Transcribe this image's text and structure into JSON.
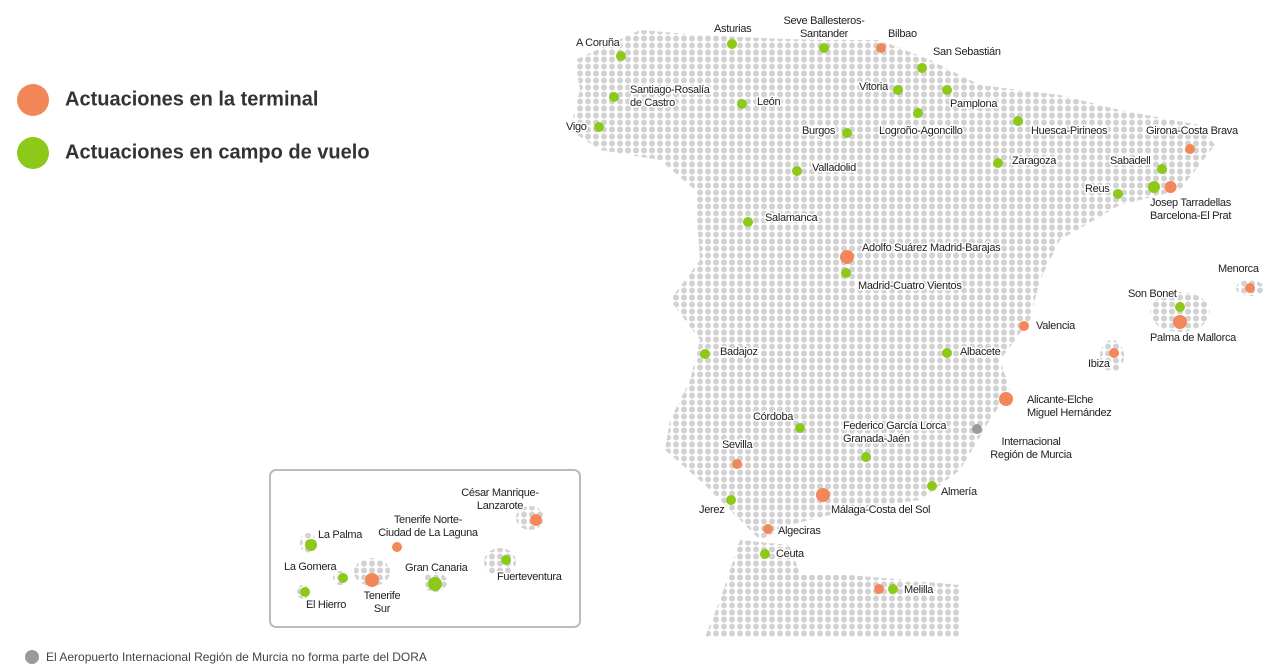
{
  "legend": [
    {
      "label": "Actuaciones en la terminal",
      "color": "#f4875a"
    },
    {
      "label": "Actuaciones en campo de vuelo",
      "color": "#8cc919"
    }
  ],
  "airports": [
    {
      "lines": [
        "A Coruña"
      ],
      "colors": [
        "#8cc919"
      ]
    },
    {
      "lines": [
        "Asturias"
      ],
      "colors": [
        "#8cc919"
      ]
    },
    {
      "lines": [
        "Seve Ballesteros-",
        "Santander"
      ],
      "colors": [
        "#8cc919"
      ]
    },
    {
      "lines": [
        "Bilbao"
      ],
      "colors": [
        "#f4875a"
      ]
    },
    {
      "lines": [
        "San Sebastián"
      ],
      "colors": [
        "#8cc919"
      ]
    },
    {
      "lines": [
        "Santiago-Rosalía",
        "de Castro"
      ],
      "colors": [
        "#8cc919"
      ]
    },
    {
      "lines": [
        "León"
      ],
      "colors": [
        "#8cc919"
      ]
    },
    {
      "lines": [
        "Vitoria"
      ],
      "colors": [
        "#8cc919"
      ]
    },
    {
      "lines": [
        "Pamplona"
      ],
      "colors": [
        "#8cc919"
      ]
    },
    {
      "lines": [
        "Vigo"
      ],
      "colors": [
        "#8cc919"
      ]
    },
    {
      "lines": [
        "Burgos"
      ],
      "colors": [
        "#8cc919"
      ]
    },
    {
      "lines": [
        "Logroño-Agoncillo"
      ],
      "colors": [
        "#8cc919"
      ]
    },
    {
      "lines": [
        "Huesca-Pirineos"
      ],
      "colors": [
        "#8cc919"
      ]
    },
    {
      "lines": [
        "Girona-Costa Brava"
      ],
      "colors": [
        "#f4875a"
      ]
    },
    {
      "lines": [
        "Valladolid"
      ],
      "colors": [
        "#8cc919"
      ]
    },
    {
      "lines": [
        "Zaragoza"
      ],
      "colors": [
        "#8cc919"
      ]
    },
    {
      "lines": [
        "Sabadell"
      ],
      "colors": [
        "#8cc919"
      ]
    },
    {
      "lines": [
        "Reus"
      ],
      "colors": [
        "#8cc919"
      ]
    },
    {
      "lines": [
        "Josep Tarradellas",
        "Barcelona-El Prat"
      ],
      "colors": [
        "#8cc919",
        "#f4875a"
      ]
    },
    {
      "lines": [
        "Salamanca"
      ],
      "colors": [
        "#8cc919"
      ]
    },
    {
      "lines": [
        "Adolfo Suárez Madrid-Barajas"
      ],
      "colors": [
        "#f4875a"
      ]
    },
    {
      "lines": [
        "Madrid-Cuatro Vientos"
      ],
      "colors": [
        "#8cc919"
      ]
    },
    {
      "lines": [
        "Valencia"
      ],
      "colors": [
        "#f4875a"
      ]
    },
    {
      "lines": [
        "Badajoz"
      ],
      "colors": [
        "#8cc919"
      ]
    },
    {
      "lines": [
        "Albacete"
      ],
      "colors": [
        "#8cc919"
      ]
    },
    {
      "lines": [
        "Alicante-Elche",
        "Miguel Hernández"
      ],
      "colors": [
        "#f4875a"
      ]
    },
    {
      "lines": [
        "Córdoba"
      ],
      "colors": [
        "#8cc919"
      ]
    },
    {
      "lines": [
        "Federico García Lorca",
        "Granada-Jaén"
      ],
      "colors": [
        "#8cc919"
      ]
    },
    {
      "lines": [
        "Internacional",
        "Región de Murcia"
      ],
      "colors": [
        "#9a9a9a"
      ]
    },
    {
      "lines": [
        "Sevilla"
      ],
      "colors": [
        "#f4875a"
      ]
    },
    {
      "lines": [
        "Almería"
      ],
      "colors": [
        "#8cc919"
      ]
    },
    {
      "lines": [
        "Málaga-Costa del Sol"
      ],
      "colors": [
        "#f4875a"
      ]
    },
    {
      "lines": [
        "Jerez"
      ],
      "colors": [
        "#8cc919"
      ]
    },
    {
      "lines": [
        "Algeciras"
      ],
      "colors": [
        "#f4875a"
      ]
    },
    {
      "lines": [
        "Ceuta"
      ],
      "colors": [
        "#8cc919"
      ]
    },
    {
      "lines": [
        "Melilla"
      ],
      "colors": [
        "#f4875a",
        "#8cc919"
      ]
    },
    {
      "lines": [
        "Menorca"
      ],
      "colors": [
        "#f4875a"
      ]
    },
    {
      "lines": [
        "Son Bonet"
      ],
      "colors": [
        "#8cc919"
      ]
    },
    {
      "lines": [
        "Palma de Mallorca"
      ],
      "colors": [
        "#f4875a"
      ]
    },
    {
      "lines": [
        "Ibiza"
      ],
      "colors": [
        "#f4875a"
      ]
    }
  ],
  "canarias": [
    {
      "lines": [
        "César Manrique-",
        "Lanzarote"
      ],
      "colors": [
        "#f4875a"
      ]
    },
    {
      "lines": [
        "Tenerife Norte-",
        "Ciudad de La Laguna"
      ],
      "colors": [
        "#f4875a"
      ]
    },
    {
      "lines": [
        "La Palma"
      ],
      "colors": [
        "#8cc919"
      ]
    },
    {
      "lines": [
        "La Gomera"
      ],
      "colors": [
        "#8cc919"
      ]
    },
    {
      "lines": [
        "Tenerife",
        "Sur"
      ],
      "colors": [
        "#f4875a"
      ]
    },
    {
      "lines": [
        "Gran Canaria"
      ],
      "colors": [
        "#8cc919"
      ]
    },
    {
      "lines": [
        "Fuerteventura"
      ],
      "colors": [
        "#8cc919"
      ]
    },
    {
      "lines": [
        "El Hierro"
      ],
      "colors": [
        "#8cc919"
      ]
    }
  ],
  "note": {
    "text": "El Aeropuerto Internacional Región de Murcia no forma parte del DORA",
    "color": "#9a9a9a"
  }
}
